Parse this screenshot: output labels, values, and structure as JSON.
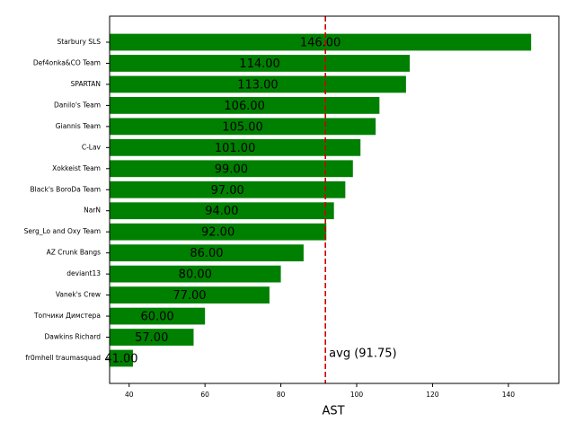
{
  "chart_data": {
    "type": "barh",
    "categories": [
      "Starbury SLS",
      "Def4onka&CO Team",
      "SPARTAN",
      "Danilo's Team",
      "Giannis Team",
      "C-Lav",
      "Xokkeist Team",
      "Black's BoroDa Team",
      "NarN",
      "Serg_Lo and Oxy Team",
      "AZ Crunk Bangs",
      "deviant13",
      "Vanek's Crew",
      "Топчики Димстера",
      "Dawkins Richard",
      "fr0mhell traumasquad"
    ],
    "values": [
      146,
      114,
      113,
      106,
      105,
      101,
      99,
      97,
      94,
      92,
      86,
      80,
      77,
      60,
      57,
      41
    ],
    "value_labels": [
      "146.00",
      "114.00",
      "113.00",
      "106.00",
      "105.00",
      "101.00",
      "99.00",
      "97.00",
      "94.00",
      "92.00",
      "86.00",
      "80.00",
      "77.00",
      "60.00",
      "57.00",
      "41.00"
    ],
    "color": "#008000",
    "xlabel": "AST",
    "xlim": [
      34.85,
      153.3
    ],
    "xticks": [
      40,
      60,
      80,
      100,
      120,
      140
    ],
    "avg_value": 91.75,
    "avg_color": "#cc0000",
    "avg_label": "avg (91.75)"
  }
}
